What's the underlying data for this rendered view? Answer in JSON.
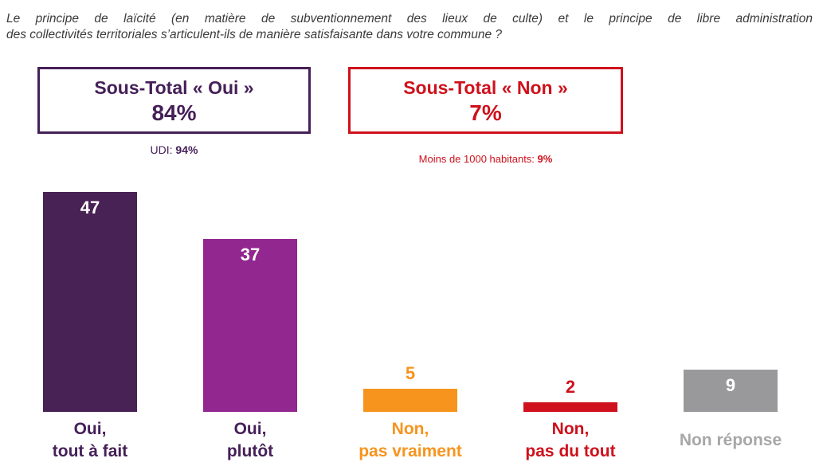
{
  "question": {
    "line1": "Le principe de laïcité (en matière de subventionnement des lieux de culte) et le principe de libre administration",
    "line2": "des collectivités territoriales s’articulent-ils de manière satisfaisante dans votre commune ?"
  },
  "totals": {
    "oui": {
      "title": "Sous-Total « Oui »",
      "value": "84%",
      "color": "#452058",
      "note_label": "UDI: ",
      "note_value": "94%"
    },
    "non": {
      "title": "Sous-Total « Non »",
      "value": "7%",
      "color": "#ce111c",
      "note_label": "Moins de 1000 habitants: ",
      "note_value": "9%"
    }
  },
  "chart_data": {
    "type": "bar",
    "title": "",
    "xlabel": "",
    "ylabel": "",
    "unit": "%",
    "ylim": [
      0,
      50
    ],
    "grid": false,
    "legend": "none",
    "categories": [
      "Oui, tout à fait",
      "Oui, plutôt",
      "Non, pas vraiment",
      "Non, pas du tout",
      "Non réponse"
    ],
    "values": [
      47,
      37,
      5,
      2,
      9
    ],
    "bar_colors": [
      "#482155",
      "#92278f",
      "#f7941e",
      "#ce111c",
      "#99989b"
    ],
    "label_colors": [
      "#452058",
      "#452058",
      "#f7941e",
      "#ce111c",
      "#a7a7a9"
    ],
    "label_lines": [
      [
        "Oui,",
        "tout à fait"
      ],
      [
        "Oui,",
        "plutôt"
      ],
      [
        "Non,",
        "pas vraiment"
      ],
      [
        "Non,",
        "pas du tout"
      ],
      [
        "Non réponse"
      ]
    ],
    "value_text_color_inside": "#ffffff"
  }
}
